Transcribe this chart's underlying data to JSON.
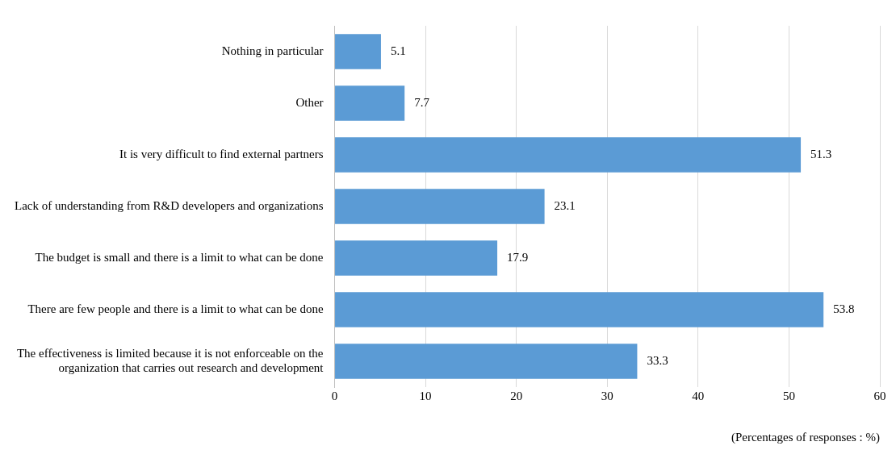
{
  "chart_data": {
    "type": "bar",
    "orientation": "horizontal",
    "categories": [
      "Nothing in particular",
      "Other",
      "It is very difficult to find external partners",
      "Lack of understanding from R&D developers and organizations",
      "The budget is small and there is a limit to what can be done",
      "There are few people and there is a limit to what can be done",
      "The effectiveness is limited because it is not enforceable on the organization that carries out research and development"
    ],
    "values": [
      5.1,
      7.7,
      51.3,
      23.1,
      17.9,
      53.8,
      33.3
    ],
    "color": "#5b9bd5",
    "xlim": [
      0,
      60
    ],
    "xticks": [
      0,
      10,
      20,
      30,
      40,
      50,
      60
    ],
    "xlabel": "(Percentages of responses : %)",
    "grid": "x",
    "data_labels": true,
    "legend": false
  }
}
